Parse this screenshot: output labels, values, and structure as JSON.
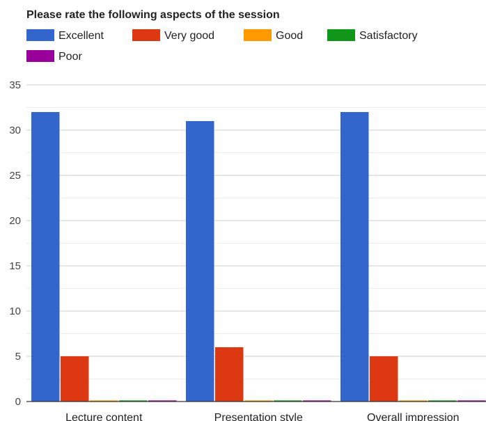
{
  "chart_data": {
    "type": "bar",
    "title": "Please rate the following aspects of the session",
    "categories": [
      "Lecture content",
      "Presentation style",
      "Overall impression"
    ],
    "series": [
      {
        "name": "Excellent",
        "color": "#3366cc",
        "values": [
          32,
          31,
          32
        ]
      },
      {
        "name": "Very good",
        "color": "#dc3912",
        "values": [
          5,
          6,
          5
        ]
      },
      {
        "name": "Good",
        "color": "#ff9900",
        "values": [
          0,
          0,
          0
        ]
      },
      {
        "name": "Satisfactory",
        "color": "#109618",
        "values": [
          0,
          0,
          0
        ]
      },
      {
        "name": "Poor",
        "color": "#990099",
        "values": [
          0,
          0,
          0
        ]
      }
    ],
    "xlabel": "",
    "ylabel": "",
    "ylim": [
      0,
      35
    ],
    "yticks": [
      0,
      5,
      10,
      15,
      20,
      25,
      30,
      35
    ],
    "grid": true,
    "legend_position": "top"
  }
}
